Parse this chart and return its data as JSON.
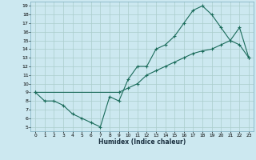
{
  "title": "",
  "xlabel": "Humidex (Indice chaleur)",
  "bg_color": "#cce8f0",
  "grid_color": "#aacccc",
  "line_color": "#1a6b5a",
  "xlim": [
    -0.5,
    23.5
  ],
  "ylim": [
    4.5,
    19.5
  ],
  "xticks": [
    0,
    1,
    2,
    3,
    4,
    5,
    6,
    7,
    8,
    9,
    10,
    11,
    12,
    13,
    14,
    15,
    16,
    17,
    18,
    19,
    20,
    21,
    22,
    23
  ],
  "yticks": [
    5,
    6,
    7,
    8,
    9,
    10,
    11,
    12,
    13,
    14,
    15,
    16,
    17,
    18,
    19
  ],
  "line1_x": [
    0,
    1,
    2,
    3,
    4,
    5,
    6,
    7,
    8,
    9,
    10,
    11,
    12,
    13,
    14,
    15,
    16,
    17,
    18,
    19,
    20,
    21,
    22,
    23
  ],
  "line1_y": [
    9,
    8,
    8,
    7.5,
    6.5,
    6,
    5.5,
    5,
    8.5,
    8,
    10.5,
    12,
    12,
    14,
    14.5,
    15.5,
    17,
    18.5,
    19,
    18,
    16.5,
    15,
    14.5,
    13
  ],
  "line2_x": [
    0,
    9,
    10,
    11,
    12,
    13,
    14,
    15,
    16,
    17,
    18,
    19,
    20,
    21,
    22,
    23
  ],
  "line2_y": [
    9,
    9,
    9.5,
    10,
    11,
    11.5,
    12,
    12.5,
    13,
    13.5,
    13.8,
    14,
    14.5,
    15,
    16.5,
    13
  ]
}
